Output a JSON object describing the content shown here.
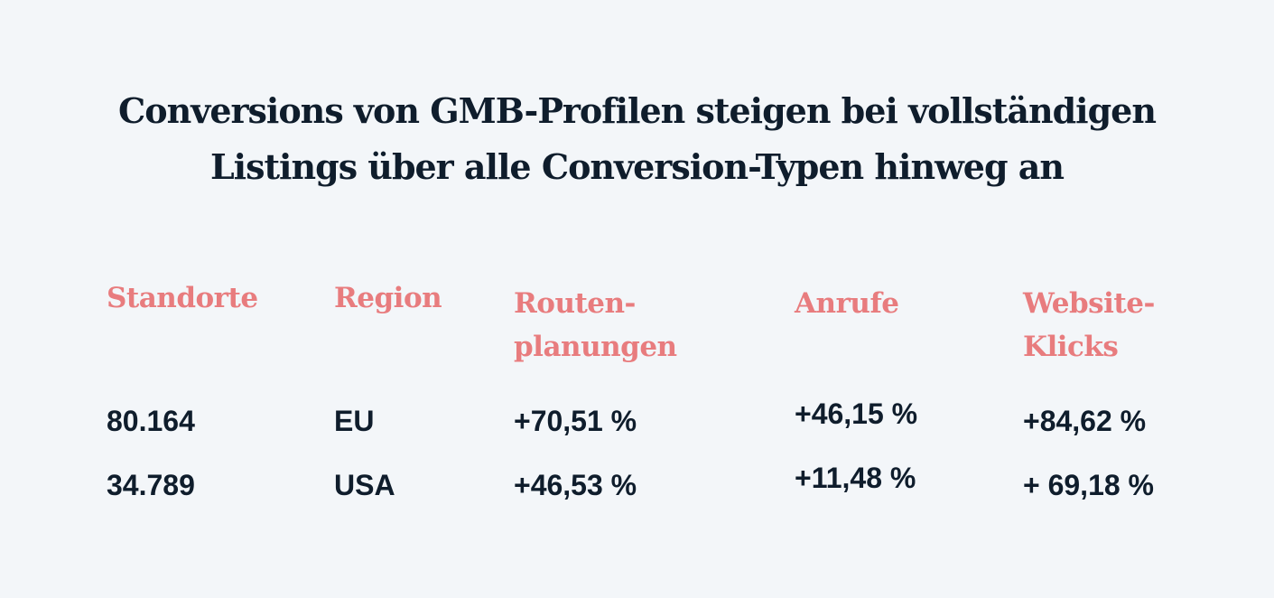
{
  "title": {
    "line1": "Conversions von GMB-Profilen steigen bei vollständigen",
    "line2": "Listings über alle Conversion-Typen hinweg an"
  },
  "table": {
    "headers": [
      {
        "lines": [
          "Standorte"
        ]
      },
      {
        "lines": [
          "Region"
        ]
      },
      {
        "lines": [
          "Routen-",
          "planungen"
        ]
      },
      {
        "lines": [
          "Anrufe"
        ]
      },
      {
        "lines": [
          "Website-",
          "Klicks"
        ]
      }
    ],
    "rows": [
      [
        "80.164",
        "EU",
        "+70,51 %",
        "+46,15 %",
        "+84,62 %"
      ],
      [
        "34.789",
        "USA",
        "+46,53 %",
        "+11,48 %",
        "+ 69,18 %"
      ]
    ]
  },
  "colors": {
    "background": "#f3f6f9",
    "text": "#0f1d2c",
    "header_accent": "#e87c7e"
  }
}
